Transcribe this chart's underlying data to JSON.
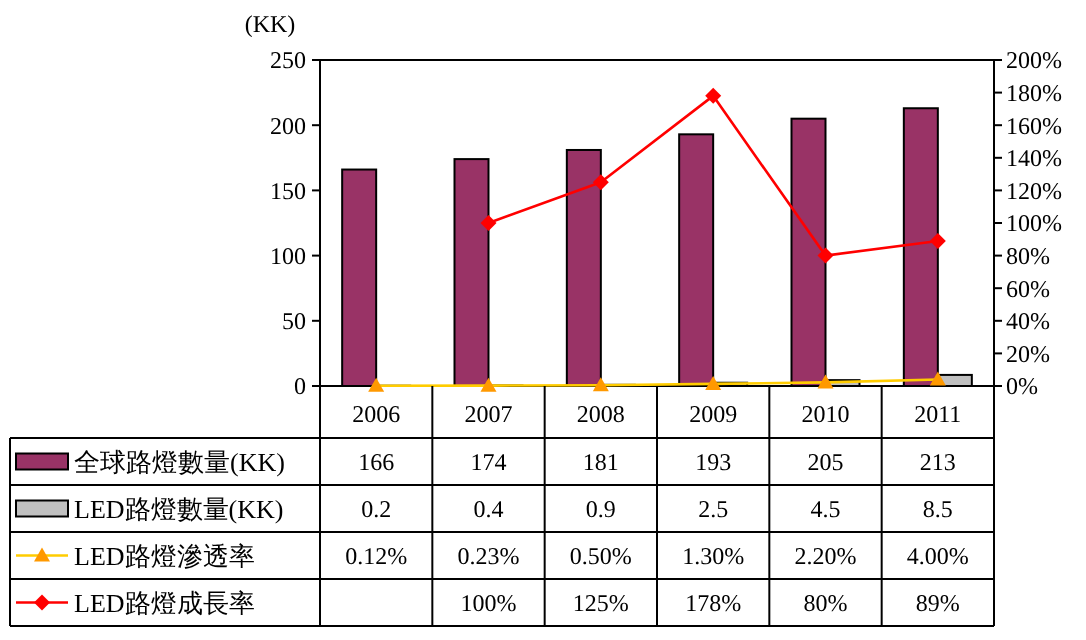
{
  "chart_data": {
    "type": "bar",
    "ylabel": "(KK)",
    "categories": [
      "2006",
      "2007",
      "2008",
      "2009",
      "2010",
      "2011"
    ],
    "ylim": [
      0,
      250
    ],
    "yticks": [
      0,
      50,
      100,
      150,
      200,
      250
    ],
    "y2lim": [
      0,
      200
    ],
    "y2ticks": [
      {
        "value": 0,
        "label": "0%"
      },
      {
        "value": 20,
        "label": "20%"
      },
      {
        "value": 40,
        "label": "40%"
      },
      {
        "value": 60,
        "label": "60%"
      },
      {
        "value": 80,
        "label": "80%"
      },
      {
        "value": 100,
        "label": "100%"
      },
      {
        "value": 120,
        "label": "120%"
      },
      {
        "value": 140,
        "label": "140%"
      },
      {
        "value": 160,
        "label": "160%"
      },
      {
        "value": 180,
        "label": "180%"
      },
      {
        "value": 200,
        "label": "200%"
      }
    ],
    "grid": false,
    "legend": "bottom",
    "series": [
      {
        "name": "全球路燈數量(KK)",
        "color": "#993366",
        "values": [
          166,
          174,
          181,
          193,
          205,
          213
        ],
        "value_labels": [
          "166",
          "174",
          "181",
          "193",
          "205",
          "213"
        ]
      },
      {
        "name": "LED路燈數量(KK)",
        "color": "#c0c0c0",
        "values": [
          0.2,
          0.4,
          0.9,
          2.5,
          4.5,
          8.5
        ],
        "value_labels": [
          "0.2",
          "0.4",
          "0.9",
          "2.5",
          "4.5",
          "8.5"
        ]
      },
      {
        "name": "LED路燈滲透率",
        "type": "line",
        "axis": "y2",
        "color": "#ffcc00",
        "marker": "triangle",
        "values": [
          0.12,
          0.23,
          0.5,
          1.3,
          2.2,
          4.0
        ],
        "value_labels": [
          "0.12%",
          "0.23%",
          "0.50%",
          "1.30%",
          "2.20%",
          "4.00%"
        ]
      },
      {
        "name": "LED路燈成長率",
        "type": "line",
        "axis": "y2",
        "color": "#ff0000",
        "marker": "diamond",
        "values": [
          null,
          100,
          125,
          178,
          80,
          89
        ],
        "value_labels": [
          null,
          "100%",
          "125%",
          "178%",
          "80%",
          "89%"
        ]
      }
    ]
  }
}
